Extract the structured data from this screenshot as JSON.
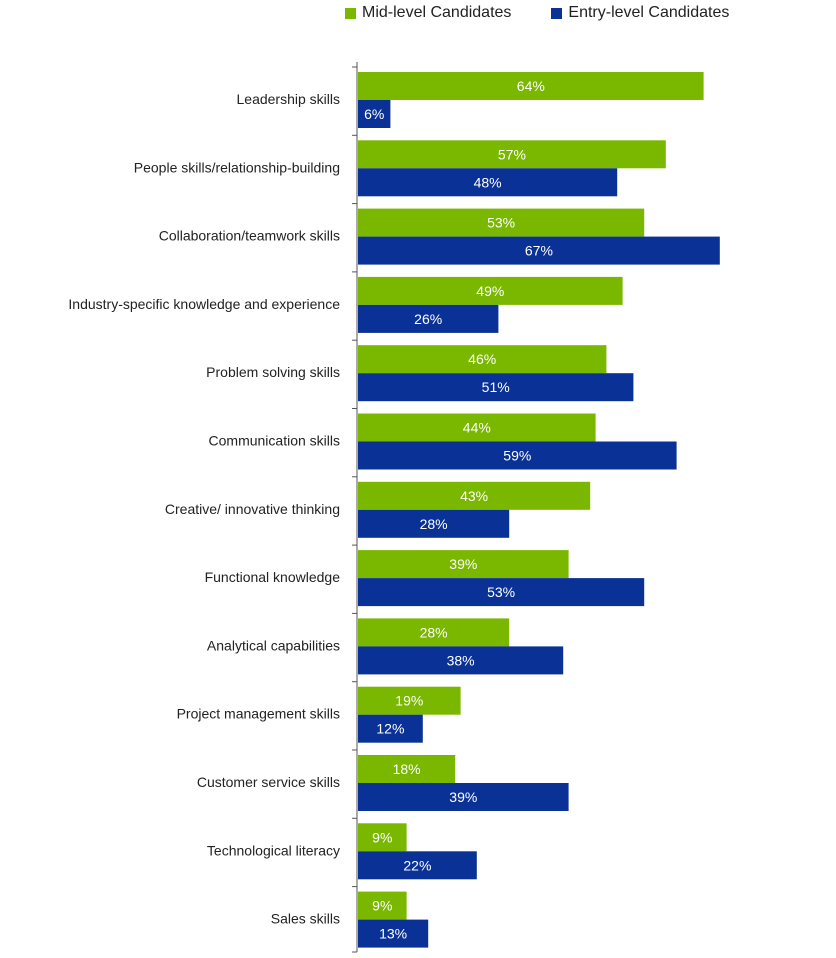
{
  "chart_data": {
    "type": "bar",
    "orientation": "horizontal",
    "title": "",
    "xlabel": "",
    "ylabel": "",
    "xlim": [
      0,
      100
    ],
    "grid": false,
    "legend": "top",
    "categories": [
      "Leadership skills",
      "People skills/relationship-building",
      "Collaboration/teamwork skills",
      "Industry-specific knowledge and experience",
      "Problem solving skills",
      "Communication skills",
      "Creative/ innovative thinking",
      "Functional knowledge",
      "Analytical capabilities",
      "Project management skills",
      "Customer service skills",
      "Technological literacy",
      "Sales skills"
    ],
    "series": [
      {
        "name": "Mid-level Candidates",
        "color": "#7ab800",
        "values": [
          64,
          57,
          53,
          49,
          46,
          44,
          43,
          39,
          28,
          19,
          18,
          9,
          9
        ]
      },
      {
        "name": "Entry-level Candidates",
        "color": "#0a3296",
        "values": [
          6,
          48,
          67,
          26,
          51,
          59,
          28,
          53,
          38,
          12,
          39,
          22,
          13
        ]
      }
    ],
    "value_suffix": "%"
  }
}
